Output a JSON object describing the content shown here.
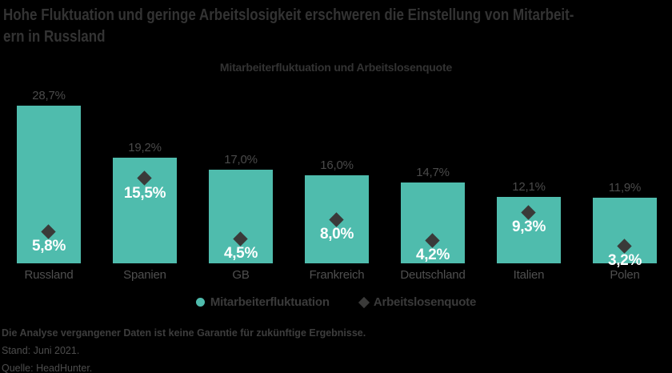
{
  "header": {
    "title_line1": "Hohe Fluktuation und geringe Arbeitslosigkeit erschweren die Einstellung von Mitarbeit-",
    "title_line2": "ern in Russland",
    "subtitle": "Mitarbeiterfluktuation und Arbeitslosenquote"
  },
  "chart_data": {
    "type": "bar",
    "title": "Mitarbeiterfluktuation und Arbeitslosenquote",
    "categories": [
      "Russland",
      "Spanien",
      "GB",
      "Frankreich",
      "Deutschland",
      "Italien",
      "Polen"
    ],
    "series": [
      {
        "name": "Mitarbeiterfluktuation",
        "chart_type": "bar",
        "color": "#4FBCAD",
        "values": [
          28.7,
          19.2,
          17.0,
          16.0,
          14.7,
          12.1,
          11.9
        ],
        "value_labels": [
          "28,7%",
          "19,2%",
          "17,0%",
          "16,0%",
          "14,7%",
          "12,1%",
          "11,9%"
        ]
      },
      {
        "name": "Arbeitslosenquote",
        "chart_type": "scatter",
        "marker": "diamond",
        "color": "#3A3A39",
        "values": [
          5.8,
          15.5,
          4.5,
          8.0,
          4.2,
          9.3,
          3.2
        ],
        "value_labels": [
          "5,8%",
          "15,5%",
          "4,5%",
          "8,0%",
          "4,2%",
          "9,3%",
          "3,2%"
        ]
      }
    ],
    "ylim": [
      0,
      30
    ],
    "grid": false,
    "legend_position": "bottom",
    "background": "#000000"
  },
  "legend": {
    "items": [
      {
        "label": "Mitarbeiterfluktuation",
        "marker": "circle",
        "color": "#4FBCAD"
      },
      {
        "label": "Arbeitslosenquote",
        "marker": "diamond",
        "color": "#3A3A39"
      }
    ]
  },
  "footer": {
    "disclaimer": "Die Analyse vergangener Daten ist keine Garantie für zukünftige Ergebnisse.",
    "stand": "Stand: Juni 2021.",
    "quelle": "Quelle: HeadHunter."
  },
  "colors": {
    "background": "#000000",
    "bar": "#4FBCAD",
    "diamond": "#3A3A39",
    "title_text": "#333333",
    "gray_label": "#4A4A4A",
    "white_label": "#FFFFFF"
  }
}
